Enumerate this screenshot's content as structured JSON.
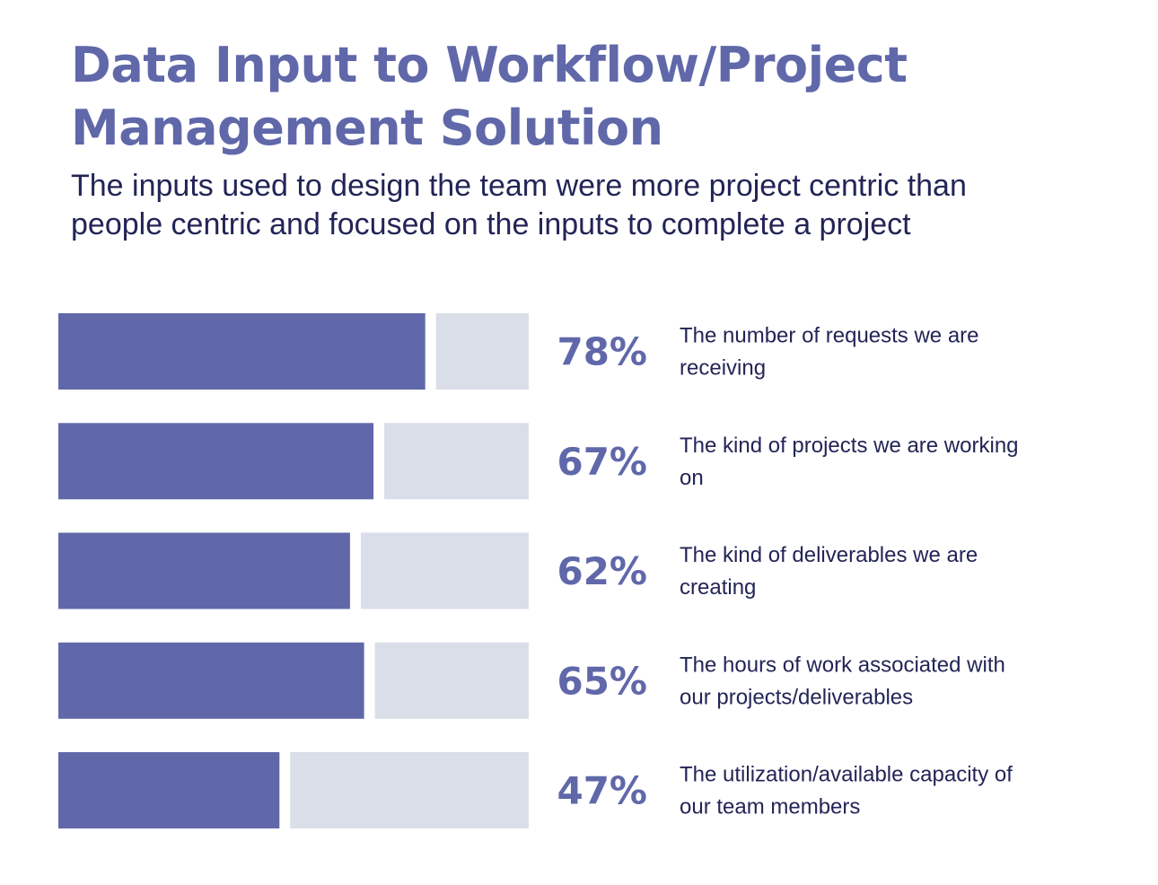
{
  "title_lines": [
    "Data Input to Workflow/Project",
    "Management Solution"
  ],
  "subtitle_lines": [
    "The inputs used to design the team were more project centric than",
    "people centric and focused on the inputs to complete a project"
  ],
  "colors": {
    "title": "#6068AA",
    "subtitle": "#222556",
    "bar_fill": "#6068AA",
    "bar_track": "#D9DEE8",
    "percent": "#6068AA",
    "label": "#222556"
  },
  "chart_data": {
    "type": "bar",
    "orientation": "horizontal",
    "title": "Data Input to Workflow/Project Management Solution",
    "subtitle": "The inputs used to design the team were more project centric than people centric and focused on the inputs to complete a project",
    "xlim": [
      0,
      100
    ],
    "unit": "%",
    "grid": false,
    "categories": [
      "The number of requests we are receiving",
      "The kind of projects we are working on",
      "The kind of deliverables we are creating",
      "The hours of work associated with our projects/deliverables",
      "The utilization/available capacity of our team members"
    ],
    "category_lines": [
      [
        "The number of requests we are",
        "receiving"
      ],
      [
        "The kind of projects we are working",
        "on"
      ],
      [
        "The kind of deliverables we are",
        "creating"
      ],
      [
        "The hours of work associated with",
        "our projects/deliverables"
      ],
      [
        "The utilization/available capacity of",
        "our team members"
      ]
    ],
    "values": [
      78,
      67,
      62,
      65,
      47
    ],
    "value_labels": [
      "78%",
      "67%",
      "62%",
      "65%",
      "47%"
    ]
  }
}
